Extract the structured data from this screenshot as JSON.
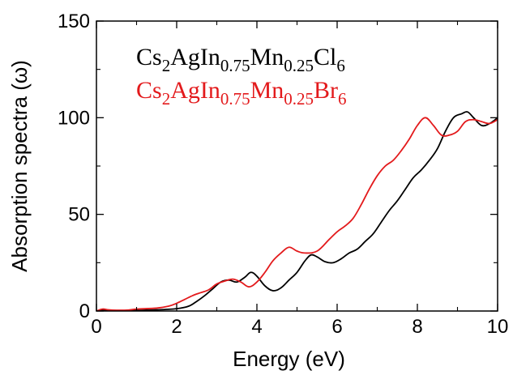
{
  "chart_data": {
    "type": "line",
    "title": "",
    "xlabel": "Energy (eV)",
    "ylabel": "Absorption spectra (ω)",
    "xlim": [
      0,
      10
    ],
    "ylim": [
      0,
      150
    ],
    "xticks": [
      "0",
      "2",
      "4",
      "6",
      "8",
      "10"
    ],
    "yticks": [
      "0",
      "50",
      "100",
      "150"
    ],
    "grid": false,
    "legend_position": "top-left",
    "series": [
      {
        "label_parts": [
          "Cs",
          "2",
          "AgIn",
          "0.75",
          "Mn",
          "0.25",
          "Cl",
          "6"
        ],
        "color": "#000000",
        "x": [
          0,
          0.15,
          0.3,
          0.5,
          0.8,
          1.0,
          1.5,
          2.0,
          2.3,
          2.5,
          2.7,
          2.9,
          3.1,
          3.3,
          3.5,
          3.7,
          3.85,
          4.0,
          4.2,
          4.4,
          4.6,
          4.8,
          5.0,
          5.2,
          5.35,
          5.5,
          5.7,
          5.9,
          6.1,
          6.3,
          6.5,
          6.7,
          6.9,
          7.1,
          7.3,
          7.5,
          7.7,
          7.9,
          8.1,
          8.3,
          8.5,
          8.7,
          8.9,
          9.1,
          9.25,
          9.4,
          9.6,
          9.8,
          10.0
        ],
        "y": [
          0,
          0.5,
          0.3,
          0.2,
          0.2,
          0.3,
          0.6,
          1.2,
          2.5,
          5,
          8,
          11.5,
          15,
          16,
          15,
          17.5,
          20,
          18,
          13,
          10.5,
          12,
          16,
          20,
          26,
          29,
          28,
          25.5,
          25,
          27,
          30,
          32,
          36,
          40,
          46,
          52,
          57,
          63,
          69,
          73,
          78,
          84,
          93,
          100,
          102,
          103,
          100,
          96,
          97,
          100
        ]
      },
      {
        "label_parts": [
          "Cs",
          "2",
          "AgIn",
          "0.75",
          "Mn",
          "0.25",
          "Br",
          "6"
        ],
        "color": "#e31a1c",
        "x": [
          0,
          0.15,
          0.3,
          0.5,
          0.8,
          1.0,
          1.5,
          1.8,
          2.0,
          2.2,
          2.4,
          2.6,
          2.8,
          3.0,
          3.2,
          3.4,
          3.6,
          3.8,
          4.0,
          4.2,
          4.4,
          4.6,
          4.8,
          5.0,
          5.2,
          5.5,
          5.8,
          6.0,
          6.2,
          6.4,
          6.6,
          6.8,
          7.0,
          7.2,
          7.4,
          7.6,
          7.8,
          8.0,
          8.2,
          8.4,
          8.6,
          8.8,
          9.0,
          9.2,
          9.4,
          9.6,
          9.8,
          10.0
        ],
        "y": [
          0,
          1,
          0.6,
          0.4,
          0.5,
          1,
          1.5,
          2.5,
          4,
          6,
          8,
          9.5,
          11,
          14,
          15.5,
          16.5,
          15,
          12.5,
          15,
          20,
          26,
          30,
          33,
          31,
          30,
          31,
          37,
          41,
          44,
          48,
          55,
          63,
          70,
          75,
          78,
          83,
          89,
          96,
          100,
          96,
          91,
          91,
          93,
          98,
          99,
          98,
          97,
          99
        ]
      }
    ]
  }
}
